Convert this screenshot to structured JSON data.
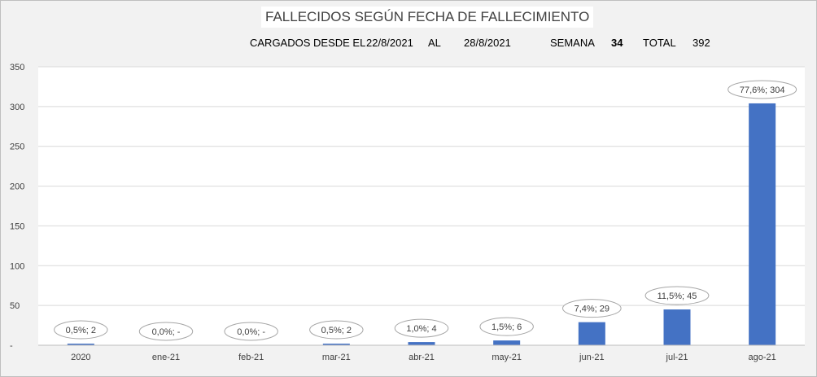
{
  "header": {
    "title": "FALLECIDOS SEGÚN FECHA DE FALLECIMIENTO",
    "loaded_label": "CARGADOS DESDE EL",
    "date_from": "22/8/2021",
    "to_label": "AL",
    "date_to": "28/8/2021",
    "week_label": "SEMANA",
    "week_value": "34",
    "total_label": "TOTAL",
    "total_value": "392"
  },
  "chart_data": {
    "type": "bar",
    "title": "FALLECIDOS SEGÚN FECHA DE FALLECIMIENTO",
    "categories": [
      "2020",
      "ene-21",
      "feb-21",
      "mar-21",
      "abr-21",
      "may-21",
      "jun-21",
      "jul-21",
      "ago-21"
    ],
    "values": [
      2,
      0,
      0,
      2,
      4,
      6,
      29,
      45,
      304
    ],
    "data_labels": [
      "0,5%; 2",
      "0,0%; -",
      "0,0%; -",
      "0,5%; 2",
      "1,0%; 4",
      "1,5%; 6",
      "7,4%; 29",
      "11,5%; 45",
      "77,6%; 304"
    ],
    "y_ticks": [
      "-",
      "50",
      "100",
      "150",
      "200",
      "250",
      "300",
      "350"
    ],
    "ylim": [
      0,
      350
    ],
    "grid": true,
    "bar_color": "#4472c4"
  }
}
